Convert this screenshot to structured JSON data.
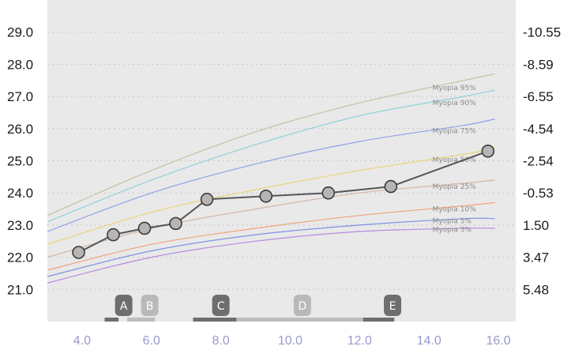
{
  "chart_data": {
    "type": "line",
    "xlim": [
      3.0,
      16.5
    ],
    "ylim": [
      20.0,
      30.0
    ],
    "grid": true,
    "x_ticks": [
      "4.0",
      "6.0",
      "8.0",
      "10.0",
      "12.0",
      "14.0",
      "16.0"
    ],
    "y_ticks_left": [
      "29.0",
      "28.0",
      "27.0",
      "26.0",
      "25.0",
      "24.0",
      "23.0",
      "22.0",
      "21.0"
    ],
    "y_ticks_right": [
      "-10.55",
      "-8.59",
      "-6.55",
      "-4.54",
      "-2.54",
      "-0.53",
      "1.50",
      "3.47",
      "5.48"
    ],
    "colors": {
      "plot_bg": "#e9e9e9",
      "grid": "#c8c8c8",
      "measurement_line": "#555555",
      "marker_fill": "#b5b5b5",
      "marker_stroke": "#3a3a3a"
    },
    "percentile_curves": [
      {
        "name": "Myopia 95%",
        "color": "#c2c3a2",
        "x": [
          3.0,
          6.0,
          9.0,
          12.0,
          15.0,
          15.9
        ],
        "y": [
          23.3,
          24.7,
          25.9,
          26.8,
          27.5,
          27.7
        ]
      },
      {
        "name": "Myopia 90%",
        "color": "#8fd2d8",
        "x": [
          3.0,
          6.0,
          9.0,
          12.0,
          15.0,
          15.9
        ],
        "y": [
          23.1,
          24.4,
          25.5,
          26.4,
          27.0,
          27.2
        ]
      },
      {
        "name": "Myopia 75%",
        "color": "#8fa2e6",
        "x": [
          3.0,
          6.0,
          9.0,
          12.0,
          15.0,
          15.9
        ],
        "y": [
          22.8,
          24.0,
          24.9,
          25.6,
          26.1,
          26.3
        ]
      },
      {
        "name": "Myopia 50%",
        "color": "#ead476",
        "x": [
          3.0,
          6.0,
          9.0,
          12.0,
          15.0,
          15.9
        ],
        "y": [
          22.4,
          23.4,
          24.1,
          24.7,
          25.2,
          25.4
        ]
      },
      {
        "name": "Myopia 25%",
        "color": "#d5b5a3",
        "x": [
          3.0,
          6.0,
          9.0,
          12.0,
          15.0,
          15.9
        ],
        "y": [
          22.0,
          22.9,
          23.5,
          24.0,
          24.3,
          24.4
        ]
      },
      {
        "name": "Myopia 10%",
        "color": "#f0a37c",
        "x": [
          3.0,
          6.0,
          9.0,
          12.0,
          15.0,
          15.9
        ],
        "y": [
          21.6,
          22.4,
          22.9,
          23.3,
          23.6,
          23.7
        ]
      },
      {
        "name": "Myopia 5%",
        "color": "#7f92e3",
        "x": [
          3.0,
          6.0,
          9.0,
          12.0,
          15.0,
          15.9
        ],
        "y": [
          21.4,
          22.2,
          22.7,
          23.0,
          23.2,
          23.2
        ]
      },
      {
        "name": "Myopia 3%",
        "color": "#b48ae0",
        "x": [
          3.0,
          6.0,
          9.0,
          12.0,
          15.0,
          15.9
        ],
        "y": [
          21.2,
          22.0,
          22.5,
          22.8,
          22.9,
          22.9
        ]
      }
    ],
    "measurements": {
      "x": [
        3.9,
        4.9,
        5.8,
        6.7,
        7.6,
        9.3,
        11.1,
        12.9,
        15.7
      ],
      "y": [
        22.15,
        22.7,
        22.9,
        23.05,
        23.8,
        23.9,
        24.0,
        24.2,
        25.3
      ]
    },
    "markers": [
      {
        "label": "A",
        "x": 5.2,
        "style": "dark"
      },
      {
        "label": "B",
        "x": 5.95,
        "style": "light"
      },
      {
        "label": "C",
        "x": 8.0,
        "style": "dark"
      },
      {
        "label": "D",
        "x": 10.35,
        "style": "light"
      },
      {
        "label": "E",
        "x": 12.95,
        "style": "dark"
      }
    ],
    "timeline_segments": [
      {
        "x0": 4.65,
        "x1": 5.05,
        "style": "dark"
      },
      {
        "x0": 5.3,
        "x1": 6.1,
        "style": "light"
      },
      {
        "x0": 7.2,
        "x1": 8.45,
        "style": "dark"
      },
      {
        "x0": 8.45,
        "x1": 12.1,
        "style": "light"
      },
      {
        "x0": 12.1,
        "x1": 13.0,
        "style": "dark"
      }
    ]
  }
}
